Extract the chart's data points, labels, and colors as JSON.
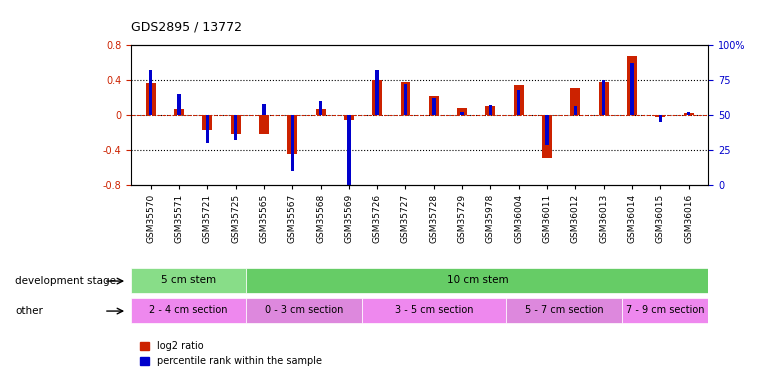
{
  "title": "GDS2895 / 13772",
  "samples": [
    "GSM35570",
    "GSM35571",
    "GSM35721",
    "GSM35725",
    "GSM35565",
    "GSM35567",
    "GSM35568",
    "GSM35569",
    "GSM35726",
    "GSM35727",
    "GSM35728",
    "GSM35729",
    "GSM35978",
    "GSM36004",
    "GSM36011",
    "GSM36012",
    "GSM36013",
    "GSM36014",
    "GSM36015",
    "GSM36016"
  ],
  "log2_ratio": [
    0.36,
    0.07,
    -0.18,
    -0.22,
    -0.22,
    -0.45,
    0.07,
    -0.06,
    0.4,
    0.38,
    0.22,
    0.08,
    0.1,
    0.34,
    -0.5,
    0.31,
    0.38,
    0.67,
    -0.02,
    0.02
  ],
  "percentile_rank": [
    82,
    65,
    30,
    32,
    58,
    10,
    60,
    -0.07,
    82,
    72,
    62,
    52,
    57,
    68,
    28,
    56,
    75,
    87,
    45,
    52
  ],
  "ylim_left": [
    -0.8,
    0.8
  ],
  "ylim_right": [
    0,
    100
  ],
  "yticks_left": [
    -0.8,
    -0.4,
    0.0,
    0.4,
    0.8
  ],
  "yticks_right": [
    0,
    25,
    50,
    75,
    100
  ],
  "ytick_labels_left": [
    "-0.8",
    "-0.4",
    "0",
    "0.4",
    "0.8"
  ],
  "ytick_labels_right": [
    "0",
    "25",
    "50",
    "75",
    "100%"
  ],
  "hlines": [
    0.4,
    0.0,
    -0.4
  ],
  "bar_color_red": "#cc2200",
  "bar_color_blue": "#0000cc",
  "background_color": "#ffffff",
  "development_stage_groups": [
    {
      "label": "5 cm stem",
      "start": 0,
      "end": 4,
      "color": "#88dd88"
    },
    {
      "label": "10 cm stem",
      "start": 4,
      "end": 20,
      "color": "#66cc66"
    }
  ],
  "other_groups": [
    {
      "label": "2 - 4 cm section",
      "start": 0,
      "end": 4,
      "color": "#ee88ee"
    },
    {
      "label": "0 - 3 cm section",
      "start": 4,
      "end": 8,
      "color": "#dd88dd"
    },
    {
      "label": "3 - 5 cm section",
      "start": 8,
      "end": 13,
      "color": "#ee88ee"
    },
    {
      "label": "5 - 7 cm section",
      "start": 13,
      "end": 17,
      "color": "#dd88dd"
    },
    {
      "label": "7 - 9 cm section",
      "start": 17,
      "end": 20,
      "color": "#ee88ee"
    }
  ],
  "legend_red_label": "log2 ratio",
  "legend_blue_label": "percentile rank within the sample",
  "dev_stage_label": "development stage",
  "other_label": "other"
}
